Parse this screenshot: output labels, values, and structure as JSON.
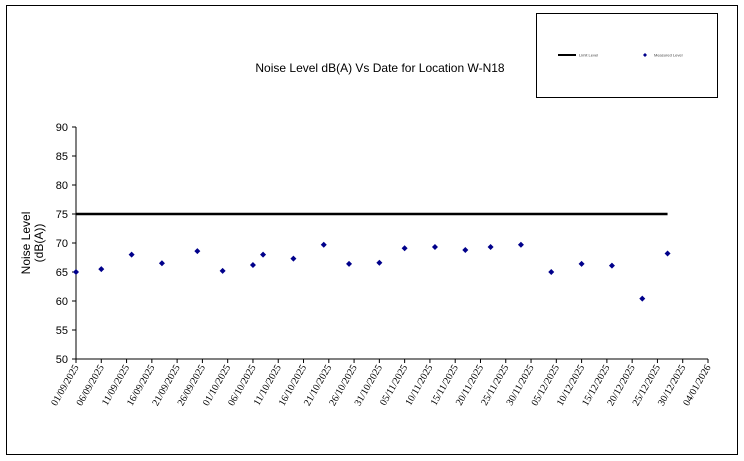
{
  "chart_data": {
    "type": "scatter",
    "title": "Noise Level dB(A) Vs Date for Location W-N18",
    "y_label": "Noise Level (dB(A))",
    "xlim": [
      "01/09/2025",
      "04/01/2026"
    ],
    "xticks": [
      "01/09/2025",
      "06/09/2025",
      "11/09/2025",
      "16/09/2025",
      "21/09/2025",
      "26/09/2025",
      "01/10/2025",
      "06/10/2025",
      "11/10/2025",
      "16/10/2025",
      "21/10/2025",
      "26/10/2025",
      "31/10/2025",
      "05/11/2025",
      "10/11/2025",
      "15/11/2025",
      "20/11/2025",
      "25/11/2025",
      "30/11/2025",
      "05/12/2025",
      "10/12/2025",
      "15/12/2025",
      "20/12/2025",
      "25/12/2025",
      "30/12/2025",
      "04/01/2026"
    ],
    "ylim": [
      50,
      90
    ],
    "yticks": [
      50,
      55,
      60,
      65,
      70,
      75,
      80,
      85,
      90
    ],
    "grid": false,
    "legend": "top-right",
    "series": [
      {
        "name": "Limit Level",
        "color": "#000000",
        "kind": "line",
        "x": [
          "01/09/2025",
          "27/12/2025"
        ],
        "values": [
          75,
          75
        ]
      },
      {
        "name": "Measured Level",
        "color": "#00008b",
        "kind": "marker",
        "x": [
          "01/09/2025",
          "06/09/2025",
          "12/09/2025",
          "18/09/2025",
          "25/09/2025",
          "30/09/2025",
          "06/10/2025",
          "08/10/2025",
          "14/10/2025",
          "20/10/2025",
          "25/10/2025",
          "31/10/2025",
          "05/11/2025",
          "11/11/2025",
          "17/11/2025",
          "22/11/2025",
          "28/11/2025",
          "04/12/2025",
          "10/12/2025",
          "16/12/2025",
          "22/12/2025",
          "27/12/2025"
        ],
        "values": [
          65.0,
          65.5,
          68.0,
          66.5,
          68.6,
          65.2,
          66.2,
          68.0,
          67.3,
          69.7,
          66.4,
          66.6,
          69.1,
          69.3,
          68.8,
          69.3,
          69.7,
          65.0,
          66.4,
          66.1,
          60.4,
          68.2
        ]
      }
    ]
  }
}
